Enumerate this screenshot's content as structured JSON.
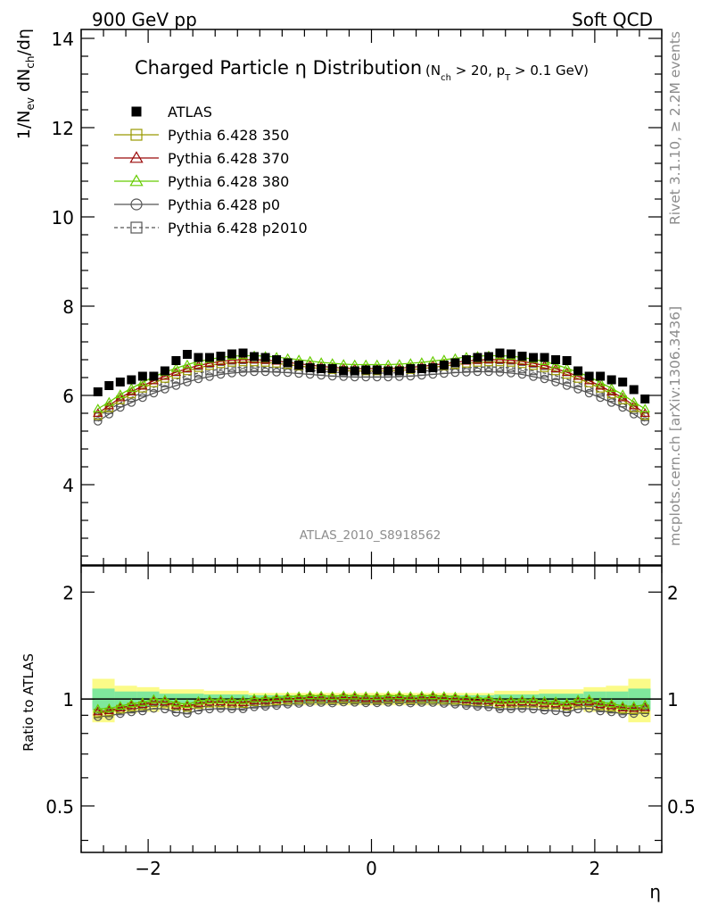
{
  "header": {
    "left": "900 GeV pp",
    "right": "Soft QCD"
  },
  "side_text": {
    "top": "Rivet 3.1.10, ≥ 2.2M events",
    "bottom": "mcplots.cern.ch [arXiv:1306.3436]"
  },
  "chart_data": [
    {
      "type": "scatter",
      "title_main": "Charged Particle η Distribution",
      "title_cond": "(N_ch > 20, p_T > 0.1 GeV)",
      "ylabel": "1/N_ev dN_ch/dη",
      "xlabel": "η",
      "watermark": "ATLAS_2010_S8918562",
      "xlim": [
        -2.6,
        2.6
      ],
      "ylim": [
        2.2,
        14.2
      ],
      "yticks": [
        4,
        6,
        8,
        10,
        12,
        14
      ],
      "xticks": [
        -2,
        0,
        2
      ],
      "legend_position": "top-left",
      "x": [
        -2.45,
        -2.35,
        -2.25,
        -2.15,
        -2.05,
        -1.95,
        -1.85,
        -1.75,
        -1.65,
        -1.55,
        -1.45,
        -1.35,
        -1.25,
        -1.15,
        -1.05,
        -0.95,
        -0.85,
        -0.75,
        -0.65,
        -0.55,
        -0.45,
        -0.35,
        -0.25,
        -0.15,
        -0.05,
        0.05,
        0.15,
        0.25,
        0.35,
        0.45,
        0.55,
        0.65,
        0.75,
        0.85,
        0.95,
        1.05,
        1.15,
        1.25,
        1.35,
        1.45,
        1.55,
        1.65,
        1.75,
        1.85,
        1.95,
        2.05,
        2.15,
        2.25,
        2.35,
        2.45
      ],
      "series": [
        {
          "name": "ATLAS",
          "color": "#000000",
          "marker": "filled-square",
          "line": "none",
          "values": [
            6.08,
            6.22,
            6.3,
            6.35,
            6.43,
            6.43,
            6.55,
            6.78,
            6.92,
            6.85,
            6.85,
            6.88,
            6.93,
            6.95,
            6.87,
            6.85,
            6.8,
            6.73,
            6.68,
            6.62,
            6.6,
            6.6,
            6.55,
            6.55,
            6.57,
            6.57,
            6.55,
            6.55,
            6.6,
            6.6,
            6.62,
            6.68,
            6.73,
            6.8,
            6.85,
            6.87,
            6.95,
            6.93,
            6.88,
            6.85,
            6.85,
            6.8,
            6.78,
            6.55,
            6.43,
            6.43,
            6.35,
            6.3,
            6.13,
            5.92
          ]
        },
        {
          "name": "Pythia 6.428 350",
          "color": "#999900",
          "marker": "open-square",
          "line": "solid",
          "values": [
            5.55,
            5.72,
            5.9,
            6.03,
            6.16,
            6.28,
            6.38,
            6.47,
            6.55,
            6.62,
            6.67,
            6.71,
            6.74,
            6.75,
            6.75,
            6.74,
            6.72,
            6.69,
            6.66,
            6.63,
            6.6,
            6.58,
            6.56,
            6.55,
            6.55,
            6.55,
            6.55,
            6.56,
            6.58,
            6.6,
            6.63,
            6.66,
            6.69,
            6.72,
            6.74,
            6.75,
            6.75,
            6.74,
            6.71,
            6.67,
            6.62,
            6.55,
            6.47,
            6.38,
            6.28,
            6.16,
            6.03,
            5.9,
            5.72,
            5.55
          ]
        },
        {
          "name": "Pythia 6.428 370",
          "color": "#9b0a0a",
          "marker": "open-triangle",
          "line": "solid",
          "values": [
            5.6,
            5.77,
            5.95,
            6.08,
            6.21,
            6.33,
            6.43,
            6.52,
            6.6,
            6.67,
            6.72,
            6.76,
            6.79,
            6.8,
            6.8,
            6.79,
            6.77,
            6.74,
            6.71,
            6.68,
            6.65,
            6.63,
            6.61,
            6.6,
            6.6,
            6.6,
            6.6,
            6.61,
            6.63,
            6.65,
            6.68,
            6.71,
            6.74,
            6.77,
            6.79,
            6.8,
            6.8,
            6.79,
            6.76,
            6.72,
            6.67,
            6.6,
            6.52,
            6.43,
            6.33,
            6.21,
            6.08,
            5.95,
            5.77,
            5.6
          ]
        },
        {
          "name": "Pythia 6.428 380",
          "color": "#66cc00",
          "marker": "open-triangle",
          "line": "solid",
          "values": [
            5.7,
            5.85,
            6.02,
            6.16,
            6.29,
            6.42,
            6.52,
            6.61,
            6.69,
            6.76,
            6.81,
            6.85,
            6.88,
            6.89,
            6.89,
            6.88,
            6.86,
            6.83,
            6.8,
            6.77,
            6.74,
            6.72,
            6.7,
            6.69,
            6.69,
            6.69,
            6.69,
            6.7,
            6.72,
            6.74,
            6.77,
            6.8,
            6.83,
            6.86,
            6.88,
            6.89,
            6.89,
            6.88,
            6.85,
            6.81,
            6.76,
            6.69,
            6.61,
            6.52,
            6.42,
            6.29,
            6.16,
            6.02,
            5.85,
            5.7
          ]
        },
        {
          "name": "Pythia 6.428 p0",
          "color": "#555555",
          "marker": "open-circle",
          "line": "solid",
          "values": [
            5.42,
            5.58,
            5.73,
            5.84,
            5.95,
            6.05,
            6.14,
            6.22,
            6.3,
            6.37,
            6.42,
            6.47,
            6.5,
            6.52,
            6.53,
            6.53,
            6.52,
            6.51,
            6.49,
            6.47,
            6.45,
            6.43,
            6.42,
            6.41,
            6.41,
            6.41,
            6.41,
            6.42,
            6.43,
            6.45,
            6.47,
            6.49,
            6.51,
            6.52,
            6.53,
            6.53,
            6.52,
            6.5,
            6.47,
            6.42,
            6.37,
            6.3,
            6.22,
            6.14,
            6.05,
            5.95,
            5.84,
            5.73,
            5.58,
            5.42
          ]
        },
        {
          "name": "Pythia 6.428 p2010",
          "color": "#555555",
          "marker": "open-square",
          "line": "dashed",
          "values": [
            5.52,
            5.68,
            5.83,
            5.95,
            6.07,
            6.18,
            6.28,
            6.36,
            6.44,
            6.5,
            6.55,
            6.59,
            6.62,
            6.63,
            6.64,
            6.63,
            6.62,
            6.6,
            6.58,
            6.56,
            6.54,
            6.52,
            6.51,
            6.5,
            6.5,
            6.5,
            6.5,
            6.51,
            6.52,
            6.54,
            6.56,
            6.58,
            6.6,
            6.62,
            6.63,
            6.64,
            6.63,
            6.62,
            6.59,
            6.55,
            6.5,
            6.44,
            6.36,
            6.28,
            6.18,
            6.07,
            5.95,
            5.83,
            5.68,
            5.52
          ]
        }
      ]
    },
    {
      "type": "scatter",
      "ylabel": "Ratio to ATLAS",
      "ylim": [
        0.37,
        2.37
      ],
      "yticks": [
        0.5,
        1,
        2
      ],
      "ytick_labels": [
        "0.5",
        "1",
        "2"
      ],
      "scale": "log",
      "reference_line": 1,
      "uncertainty_bands": {
        "stat_color": "#7fe89c",
        "total_color": "#fbfb88",
        "edges": [
          -2.5,
          -2.3,
          -2.1,
          -1.9,
          -1.5,
          -1.1,
          1.1,
          1.5,
          1.9,
          2.1,
          2.3,
          2.5
        ],
        "stat": [
          0.07,
          0.05,
          0.05,
          0.035,
          0.03,
          0.025,
          0.03,
          0.035,
          0.05,
          0.05,
          0.07
        ],
        "total": [
          0.14,
          0.09,
          0.08,
          0.065,
          0.055,
          0.04,
          0.055,
          0.065,
          0.08,
          0.09,
          0.14
        ]
      }
    }
  ]
}
